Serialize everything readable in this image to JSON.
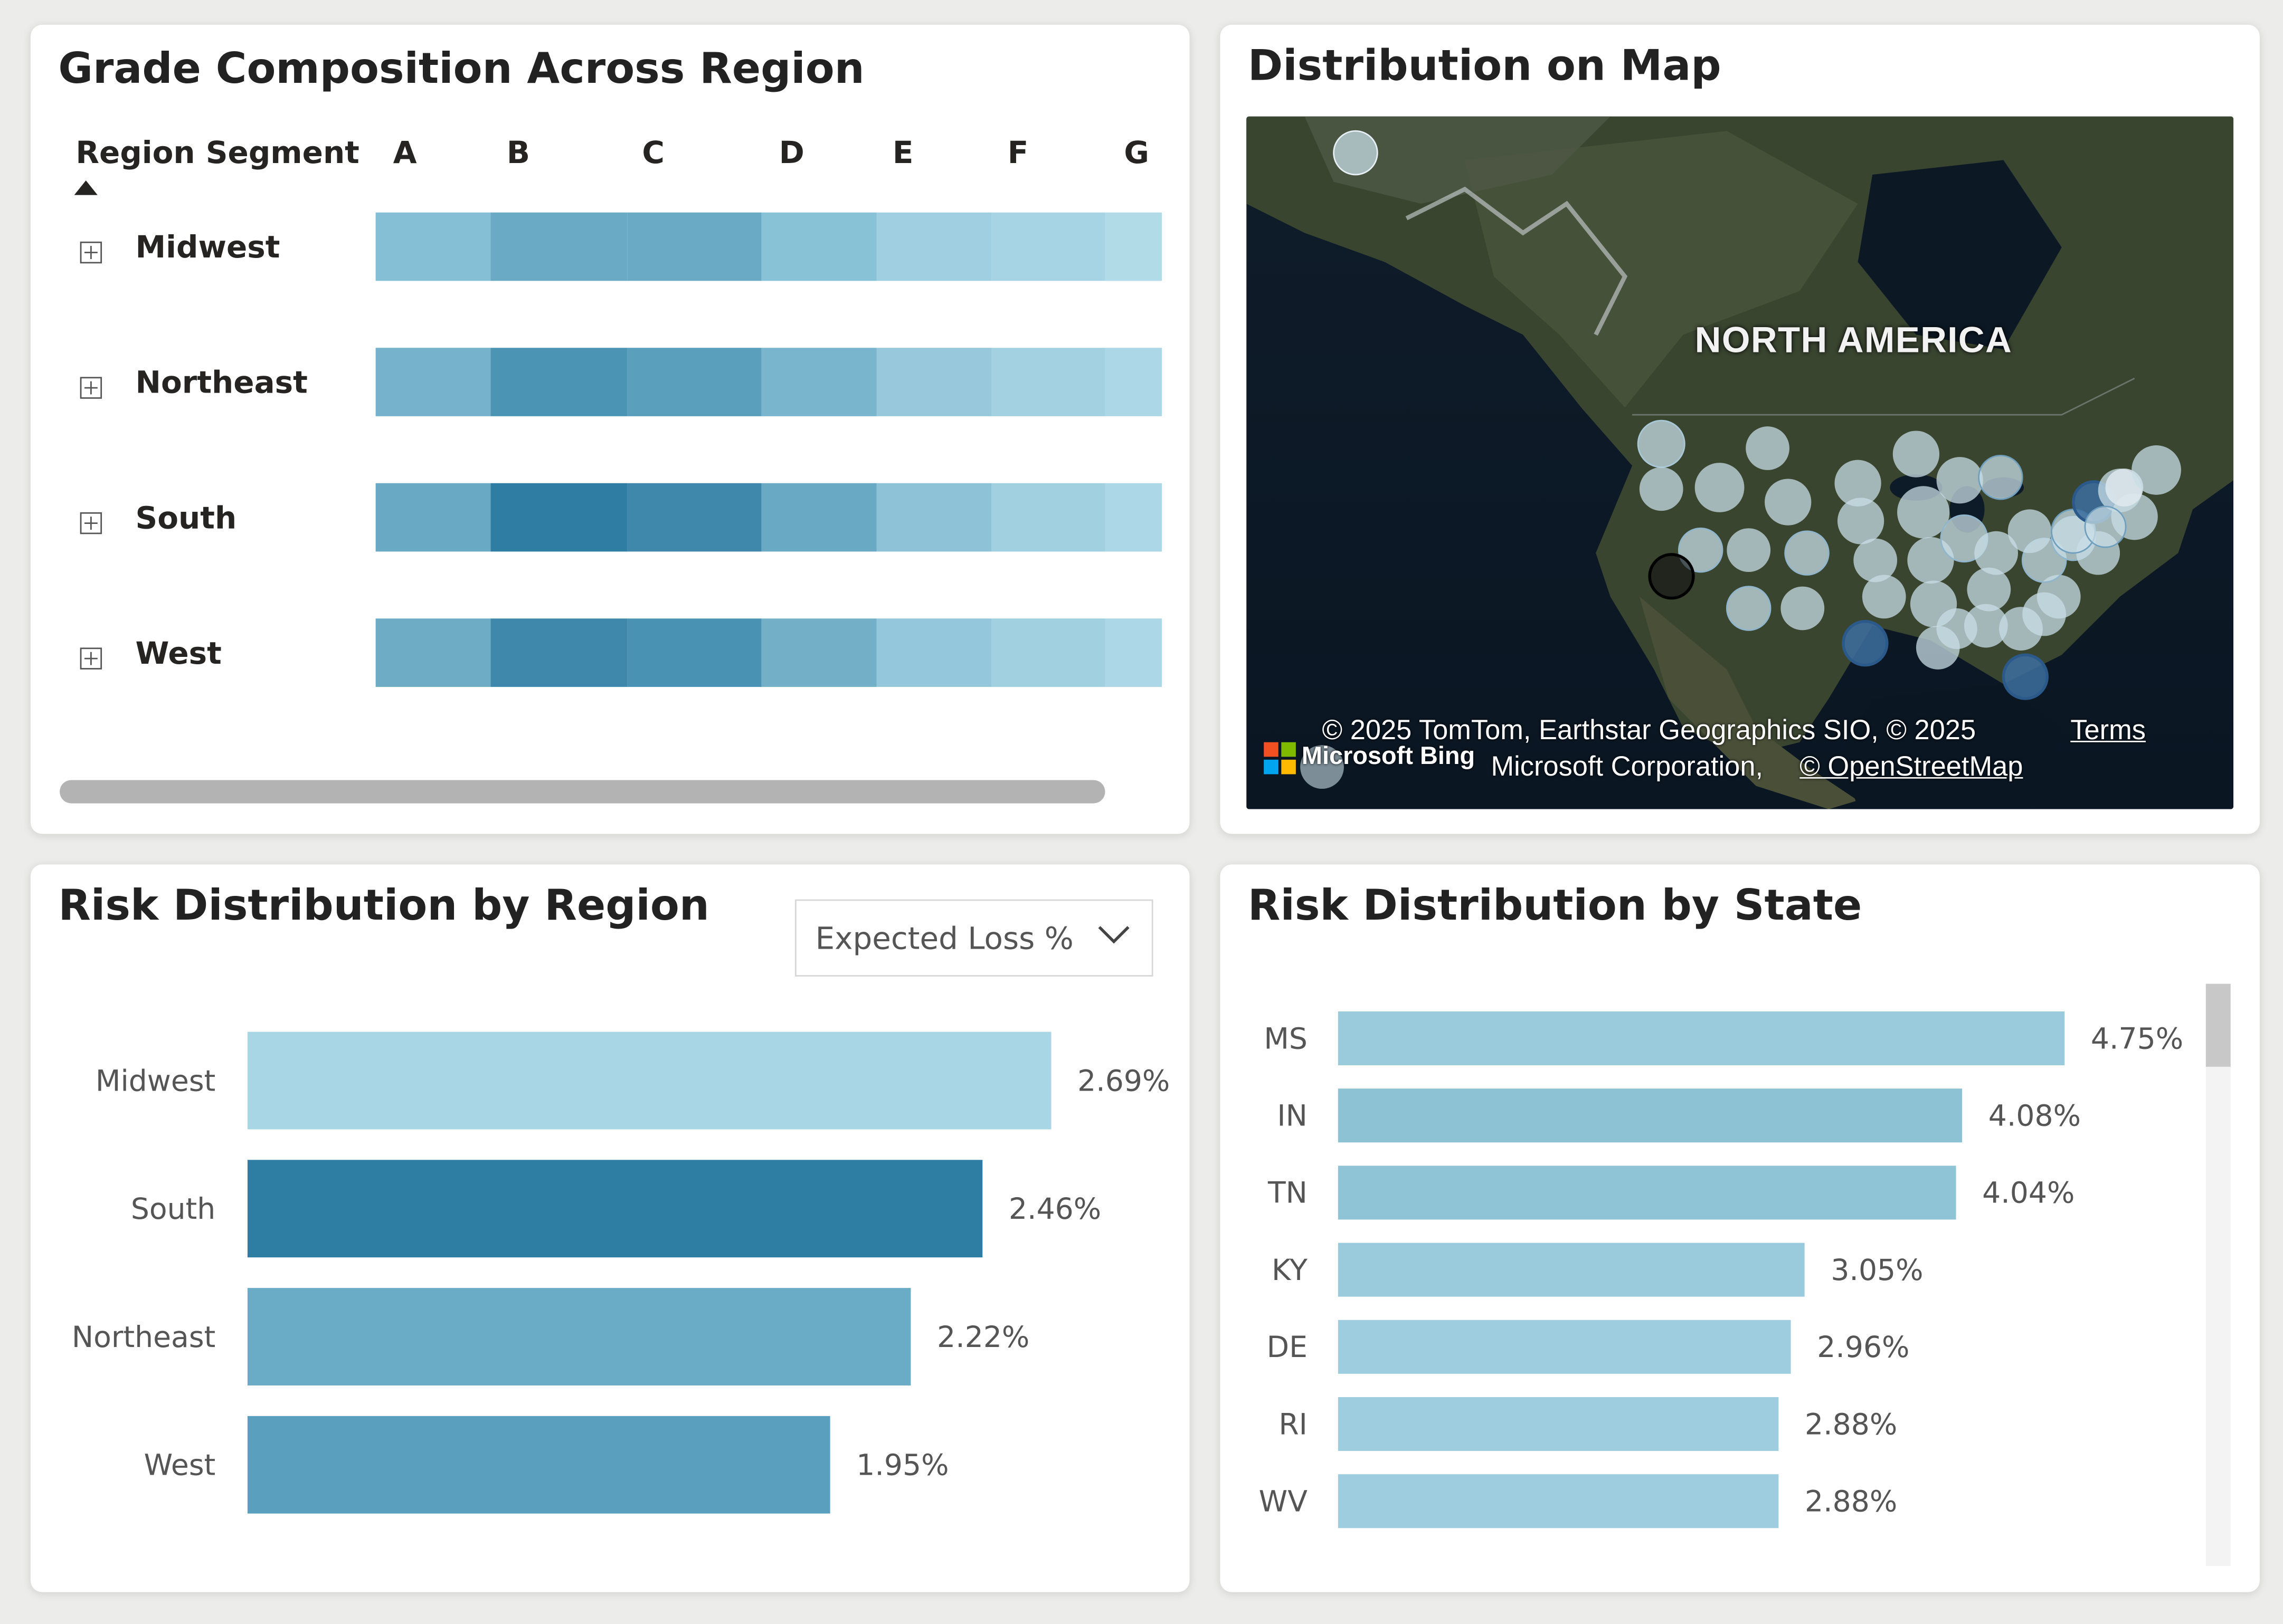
{
  "grade_panel": {
    "title": "Grade Composition Across Region",
    "column_header": "Region Segment",
    "grades": [
      "A",
      "B",
      "C",
      "D",
      "E",
      "F",
      "G"
    ],
    "rows": [
      {
        "label": "Midwest",
        "colors": [
          "#84bfd6",
          "#6aaac5",
          "#6aaac5",
          "#88c2d7",
          "#9fcfe0",
          "#a6d4e4",
          "#b2dbe8"
        ]
      },
      {
        "label": "Northeast",
        "colors": [
          "#76b2cb",
          "#4b94b3",
          "#5aa0bc",
          "#79b5cd",
          "#97c8dc",
          "#a3d1e2",
          "#acd7e6"
        ]
      },
      {
        "label": "South",
        "colors": [
          "#6aa9c4",
          "#2f7da3",
          "#3f88ac",
          "#6aa9c4",
          "#8dc2d7",
          "#a1d0e1",
          "#acd7e6"
        ]
      },
      {
        "label": "West",
        "colors": [
          "#6eacc6",
          "#3f88ac",
          "#4a92b3",
          "#73b0c8",
          "#94c7db",
          "#a1d0e1",
          "#acd7e6"
        ]
      }
    ]
  },
  "map_panel": {
    "title": "Distribution on Map",
    "continent_label": "NORTH AMERICA",
    "attribution_line1": "© 2025 TomTom, Earthstar Geographics SIO, © 2025",
    "attribution_terms": "Terms",
    "attribution_line2": "Microsoft Corporation,",
    "attribution_osm": "© OpenStreetMap",
    "brand": "Microsoft Bing"
  },
  "region_panel": {
    "title": "Risk Distribution by Region",
    "dropdown_value": "Expected Loss %",
    "chart_data": {
      "type": "bar",
      "orientation": "horizontal",
      "categories": [
        "Midwest",
        "South",
        "Northeast",
        "West"
      ],
      "values": [
        2.69,
        2.46,
        2.22,
        1.95
      ],
      "labels": [
        "2.69%",
        "2.46%",
        "2.22%",
        "1.95%"
      ],
      "colors": [
        "#a9d6e5",
        "#2e7ea4",
        "#6aabc6",
        "#5a9fbd"
      ],
      "xlim": [
        0,
        2.69
      ]
    }
  },
  "state_panel": {
    "title": "Risk Distribution by State",
    "chart_data": {
      "type": "bar",
      "orientation": "horizontal",
      "categories": [
        "MS",
        "IN",
        "TN",
        "KY",
        "DE",
        "RI",
        "WV"
      ],
      "values": [
        4.75,
        4.08,
        4.04,
        3.05,
        2.96,
        2.88,
        2.88
      ],
      "labels": [
        "4.75%",
        "4.08%",
        "4.04%",
        "3.05%",
        "2.96%",
        "2.88%",
        "2.88%"
      ],
      "colors": [
        "#9acbdd",
        "#8dc1d4",
        "#8fc3d6",
        "#9acbdd",
        "#9dcdde",
        "#9dcdde",
        "#9dcdde"
      ],
      "xlim": [
        0,
        4.75
      ]
    }
  }
}
